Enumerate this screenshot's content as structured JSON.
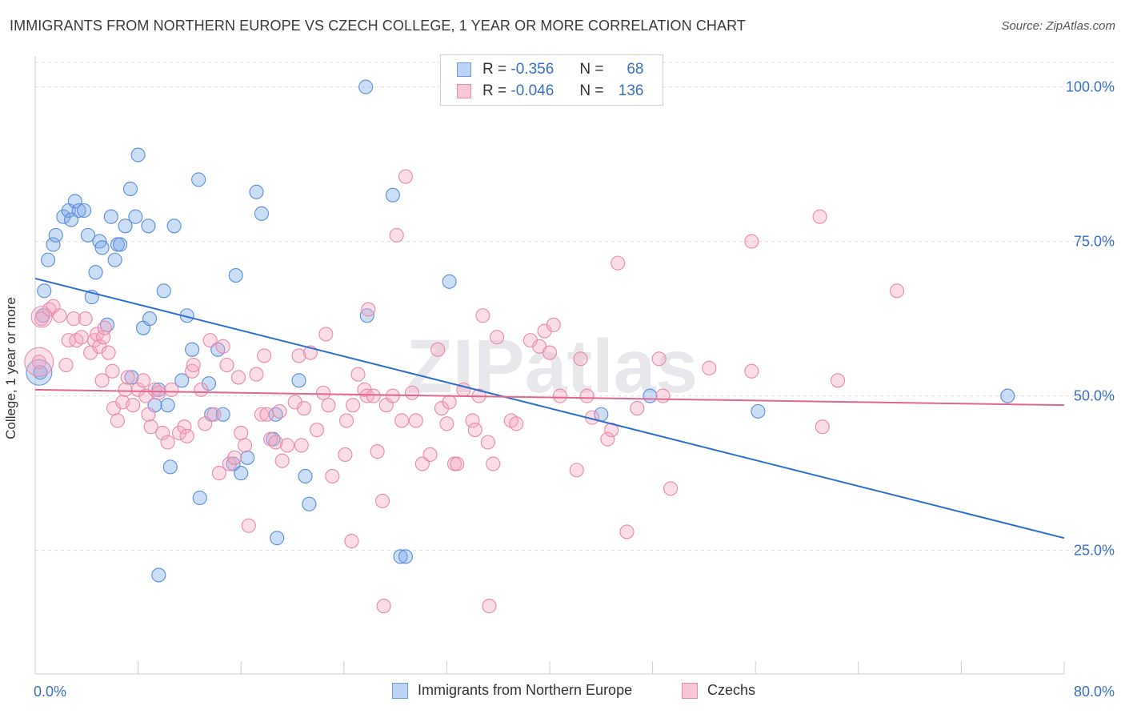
{
  "title": "IMMIGRANTS FROM NORTHERN EUROPE VS CZECH COLLEGE, 1 YEAR OR MORE CORRELATION CHART",
  "source": "Source: ZipAtlas.com",
  "watermark": "ZIPatlas",
  "legend": {
    "r_label": "R =",
    "n_label": "N =",
    "rows": [
      {
        "r": "-0.356",
        "n": "68"
      },
      {
        "r": "-0.046",
        "n": "136"
      }
    ]
  },
  "chart_data": {
    "type": "scatter",
    "xlabel": "",
    "ylabel": "College, 1 year or more",
    "xlim": [
      0,
      80
    ],
    "ylim": [
      5,
      105
    ],
    "x_tick_labels": [
      "0.0%",
      "80.0%"
    ],
    "y_tick_labels": [
      "100.0%",
      "75.0%",
      "50.0%",
      "25.0%"
    ],
    "y_ticks": [
      100,
      75,
      50,
      25
    ],
    "grid": true,
    "legend_position": "bottom",
    "series": [
      {
        "name": "Immigrants from Northern Europe",
        "color": "#7aa6e8",
        "stroke": "#5b8dd9",
        "trend": {
          "x1": 0,
          "y1": 69.0,
          "x2": 80,
          "y2": 27.0,
          "color": "#2d6fd0"
        },
        "points": [
          [
            0.4,
            53.8
          ],
          [
            0.7,
            67
          ],
          [
            0.6,
            63
          ],
          [
            1.0,
            72
          ],
          [
            1.4,
            74.5
          ],
          [
            1.6,
            76
          ],
          [
            2.2,
            79
          ],
          [
            2.6,
            80
          ],
          [
            2.8,
            78.5
          ],
          [
            3.1,
            81.5
          ],
          [
            3.4,
            80
          ],
          [
            3.8,
            80
          ],
          [
            4.1,
            76
          ],
          [
            4.4,
            66
          ],
          [
            4.7,
            70
          ],
          [
            5.0,
            75
          ],
          [
            5.2,
            74
          ],
          [
            5.6,
            61.5
          ],
          [
            5.9,
            79
          ],
          [
            6.2,
            72
          ],
          [
            6.4,
            74.5
          ],
          [
            6.6,
            74.5
          ],
          [
            7.0,
            77.5
          ],
          [
            7.4,
            83.5
          ],
          [
            7.5,
            53
          ],
          [
            7.8,
            79
          ],
          [
            8.0,
            89
          ],
          [
            8.4,
            61
          ],
          [
            8.8,
            77.5
          ],
          [
            8.9,
            62.5
          ],
          [
            9.3,
            48.5
          ],
          [
            9.6,
            51
          ],
          [
            9.6,
            21
          ],
          [
            10.0,
            67
          ],
          [
            10.3,
            48.5
          ],
          [
            10.5,
            38.5
          ],
          [
            10.8,
            77.5
          ],
          [
            11.4,
            52.5
          ],
          [
            11.8,
            63
          ],
          [
            12.2,
            57.5
          ],
          [
            12.7,
            85
          ],
          [
            12.8,
            33.5
          ],
          [
            13.5,
            52
          ],
          [
            13.7,
            47
          ],
          [
            14.2,
            57.5
          ],
          [
            14.6,
            47
          ],
          [
            15.4,
            39
          ],
          [
            15.6,
            69.5
          ],
          [
            16.0,
            37.5
          ],
          [
            16.5,
            40
          ],
          [
            17.2,
            83
          ],
          [
            17.6,
            79.5
          ],
          [
            18.5,
            43
          ],
          [
            18.8,
            27
          ],
          [
            18.7,
            47
          ],
          [
            20.5,
            52.5
          ],
          [
            21.0,
            37
          ],
          [
            21.3,
            32.5
          ],
          [
            25.8,
            63
          ],
          [
            25.7,
            100
          ],
          [
            27.8,
            82.5
          ],
          [
            28.4,
            24
          ],
          [
            28.8,
            24
          ],
          [
            32.2,
            68.5
          ],
          [
            44.0,
            47
          ],
          [
            47.8,
            50
          ],
          [
            56.2,
            47.5
          ],
          [
            75.6,
            50
          ]
        ]
      },
      {
        "name": "Czechs",
        "color": "#f4a6c0",
        "stroke": "#e88aa8",
        "trend": {
          "x1": 0,
          "y1": 51.0,
          "x2": 80,
          "y2": 48.5,
          "color": "#e06890"
        },
        "points": [
          [
            0.3,
            55.5
          ],
          [
            0.5,
            62.5
          ],
          [
            1.1,
            64
          ],
          [
            1.4,
            64.5
          ],
          [
            1.9,
            63
          ],
          [
            2.4,
            55
          ],
          [
            2.6,
            59
          ],
          [
            3.0,
            62.5
          ],
          [
            3.2,
            59
          ],
          [
            3.6,
            59.5
          ],
          [
            3.9,
            62.5
          ],
          [
            4.3,
            57
          ],
          [
            4.6,
            59
          ],
          [
            4.8,
            60
          ],
          [
            5.0,
            58
          ],
          [
            5.2,
            52.5
          ],
          [
            5.3,
            59.5
          ],
          [
            5.4,
            61
          ],
          [
            5.7,
            57
          ],
          [
            6.0,
            54
          ],
          [
            6.1,
            48
          ],
          [
            6.4,
            46
          ],
          [
            6.8,
            49
          ],
          [
            7.0,
            51
          ],
          [
            7.2,
            53
          ],
          [
            7.6,
            48.5
          ],
          [
            8.0,
            51
          ],
          [
            8.4,
            52.5
          ],
          [
            8.6,
            50
          ],
          [
            8.8,
            47
          ],
          [
            9.0,
            45
          ],
          [
            9.3,
            51
          ],
          [
            9.6,
            50.5
          ],
          [
            9.9,
            44
          ],
          [
            10.3,
            42.5
          ],
          [
            10.6,
            51
          ],
          [
            11.2,
            44
          ],
          [
            11.6,
            45
          ],
          [
            11.8,
            43.5
          ],
          [
            12.2,
            54
          ],
          [
            12.3,
            55
          ],
          [
            12.9,
            51
          ],
          [
            13.2,
            45.5
          ],
          [
            13.6,
            59
          ],
          [
            13.9,
            47
          ],
          [
            14.3,
            37.5
          ],
          [
            14.6,
            58
          ],
          [
            14.9,
            55
          ],
          [
            15.1,
            39
          ],
          [
            15.5,
            40
          ],
          [
            15.8,
            53
          ],
          [
            16.0,
            44
          ],
          [
            16.3,
            42
          ],
          [
            16.6,
            29
          ],
          [
            17.2,
            53.5
          ],
          [
            17.6,
            47
          ],
          [
            17.8,
            56.5
          ],
          [
            18.0,
            47
          ],
          [
            18.3,
            43
          ],
          [
            18.7,
            42.5
          ],
          [
            19.0,
            47.5
          ],
          [
            19.2,
            39.5
          ],
          [
            19.6,
            42
          ],
          [
            20.2,
            49
          ],
          [
            20.5,
            56.5
          ],
          [
            20.7,
            42
          ],
          [
            20.9,
            48
          ],
          [
            21.4,
            57
          ],
          [
            21.9,
            44.5
          ],
          [
            22.4,
            50.5
          ],
          [
            22.6,
            60
          ],
          [
            22.8,
            48.5
          ],
          [
            23.1,
            37
          ],
          [
            24.1,
            40.5
          ],
          [
            24.6,
            26.5
          ],
          [
            24.2,
            46
          ],
          [
            24.7,
            48.5
          ],
          [
            25.1,
            53.5
          ],
          [
            25.6,
            51
          ],
          [
            25.8,
            50
          ],
          [
            25.9,
            64
          ],
          [
            26.3,
            50
          ],
          [
            26.6,
            41
          ],
          [
            27.0,
            33
          ],
          [
            27.1,
            16
          ],
          [
            27.3,
            48.5
          ],
          [
            27.8,
            50
          ],
          [
            28.1,
            76
          ],
          [
            28.5,
            46
          ],
          [
            28.8,
            85.5
          ],
          [
            29.3,
            50.5
          ],
          [
            29.6,
            46
          ],
          [
            30.1,
            39
          ],
          [
            30.7,
            40.5
          ],
          [
            31.3,
            57.5
          ],
          [
            31.6,
            48
          ],
          [
            32.0,
            45.5
          ],
          [
            32.2,
            49
          ],
          [
            32.6,
            39
          ],
          [
            32.8,
            39
          ],
          [
            33.3,
            51
          ],
          [
            34.0,
            46
          ],
          [
            34.2,
            44.5
          ],
          [
            34.5,
            50
          ],
          [
            34.8,
            63
          ],
          [
            35.2,
            42.5
          ],
          [
            35.3,
            16
          ],
          [
            35.6,
            39
          ],
          [
            35.9,
            59.5
          ],
          [
            37.0,
            46
          ],
          [
            37.4,
            45.5
          ],
          [
            38.5,
            59
          ],
          [
            39.2,
            58
          ],
          [
            39.6,
            60.5
          ],
          [
            40.0,
            57
          ],
          [
            40.3,
            61.5
          ],
          [
            40.8,
            50
          ],
          [
            42.1,
            38
          ],
          [
            42.4,
            56
          ],
          [
            42.9,
            50
          ],
          [
            43.3,
            46.5
          ],
          [
            44.5,
            43
          ],
          [
            44.8,
            44.5
          ],
          [
            45.3,
            71.5
          ],
          [
            46.0,
            28
          ],
          [
            46.8,
            48
          ],
          [
            48.5,
            56
          ],
          [
            48.8,
            50
          ],
          [
            49.4,
            35
          ],
          [
            52.4,
            54.5
          ],
          [
            55.7,
            54
          ],
          [
            55.7,
            75
          ],
          [
            61.0,
            79
          ],
          [
            61.2,
            45
          ],
          [
            62.4,
            52.5
          ],
          [
            67.0,
            67
          ]
        ]
      }
    ]
  },
  "bottom_legend": [
    "Immigrants from Northern Europe",
    "Czechs"
  ]
}
